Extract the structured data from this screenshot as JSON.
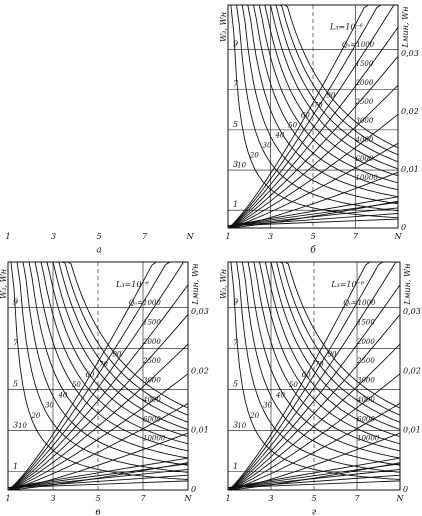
{
  "panels": [
    {
      "label": "а",
      "x_ticks": [
        "1",
        "3",
        "5",
        "7",
        "N"
      ]
    },
    {
      "label": "б",
      "y_title": "W₂, Wн",
      "y2_title": "Lмин, Wн",
      "y_ticks": [
        "9",
        "7",
        "5",
        "3",
        "1"
      ],
      "y2_ticks": [
        "0,03",
        "0,02",
        "0,01",
        "0"
      ],
      "x_ticks": [
        "1",
        "3",
        "5",
        "7",
        "N"
      ],
      "line_label": "L₃=10⁻⁶",
      "q_labels": [
        "Q₀=1000",
        "1500",
        "2000",
        "2500",
        "3000",
        "4000",
        "6000",
        "10000"
      ],
      "p_labels": [
        "10",
        "20",
        "30",
        "40",
        "50",
        "60",
        "70",
        "90"
      ]
    },
    {
      "label": "в",
      "y_title": "W₂, Wн",
      "y2_title": "Lмин, Wн",
      "y_ticks": [
        "9",
        "7",
        "5",
        "3",
        "1"
      ],
      "y2_ticks": [
        "0,03",
        "0,02",
        "0,01",
        "0"
      ],
      "x_ticks": [
        "1",
        "3",
        "5",
        "7",
        "N"
      ],
      "line_label": "L₃=10⁻⁶",
      "q_labels": [
        "Q₀=1000",
        "1500",
        "2000",
        "2500",
        "3000",
        "4000",
        "6000",
        "10000"
      ],
      "p_labels": [
        "10",
        "20",
        "30",
        "40",
        "50",
        "60",
        "70",
        "90"
      ]
    },
    {
      "label": "г",
      "y_title": "W₂, Wн",
      "y2_title": "Lмин, Wн",
      "y_ticks": [
        "9",
        "7",
        "5",
        "3",
        "1"
      ],
      "y2_ticks": [
        "0,03",
        "0,02",
        "0,01",
        "0"
      ],
      "x_ticks": [
        "1",
        "3",
        "5",
        "7",
        "N"
      ],
      "line_label": "L₃=10⁻⁶",
      "q_labels": [
        "Q₀=1000",
        "1500",
        "2000",
        "2500",
        "3000",
        "4000",
        "6000",
        "10000"
      ],
      "p_labels": [
        "10",
        "20",
        "30",
        "40",
        "50",
        "60",
        "70",
        "90"
      ]
    }
  ]
}
